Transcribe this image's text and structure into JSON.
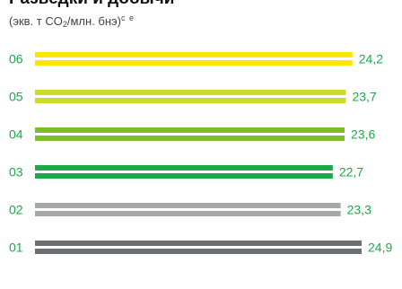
{
  "title_line": "Разведки и добычи",
  "subtitle": {
    "prefix": "(экв. т CO",
    "sub": "2",
    "middle": "/млн. бнэ)",
    "sup": "c e"
  },
  "chart_data": {
    "type": "bar",
    "orientation": "horizontal",
    "categories": [
      "06",
      "05",
      "04",
      "03",
      "02",
      "01"
    ],
    "values": [
      24.2,
      23.7,
      23.6,
      22.7,
      23.3,
      24.9
    ],
    "value_labels": [
      "24,2",
      "23,7",
      "23,6",
      "22,7",
      "23,3",
      "24,9"
    ],
    "bar_colors": [
      "#ffe600",
      "#cddc29",
      "#7cbd2a",
      "#1aaa4b",
      "#a6a7a9",
      "#6d6e71"
    ],
    "label_color": "#1aaa4b",
    "xlim": [
      0,
      24.9
    ],
    "grid": false,
    "legend": "none"
  }
}
